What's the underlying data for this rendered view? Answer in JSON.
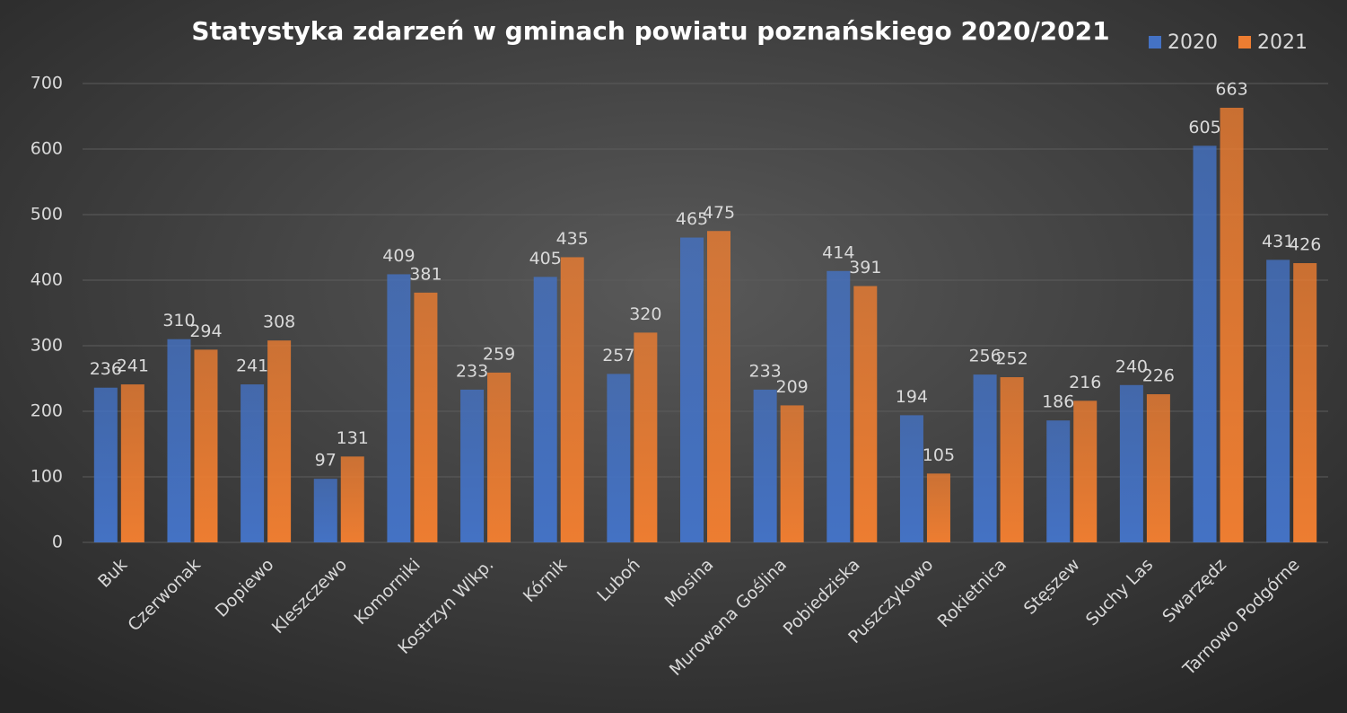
{
  "chart_data": {
    "type": "bar",
    "title": "Statystyka zdarzeń w gminach powiatu poznańskiego 2020/2021",
    "categories": [
      "Buk",
      "Czerwonak",
      "Dopiewo",
      "Kleszczewo",
      "Komorniki",
      "Kostrzyn Wlkp.",
      "Kórnik",
      "Luboń",
      "Mosina",
      "Murowana Goślina",
      "Pobiedziska",
      "Puszczykowo",
      "Rokietnica",
      "Stęszew",
      "Suchy Las",
      "Swarzędz",
      "Tarnowo Podgórne"
    ],
    "series": [
      {
        "name": "2020",
        "color": "#4472c4",
        "values": [
          236,
          310,
          241,
          97,
          409,
          233,
          405,
          257,
          465,
          233,
          414,
          194,
          256,
          186,
          240,
          605,
          431
        ]
      },
      {
        "name": "2021",
        "color": "#ed7d31",
        "values": [
          241,
          294,
          308,
          131,
          381,
          259,
          435,
          320,
          475,
          209,
          391,
          105,
          252,
          216,
          226,
          663,
          426
        ]
      }
    ],
    "ylim": [
      0,
      700
    ],
    "yticks": [
      0,
      100,
      200,
      300,
      400,
      500,
      600,
      700
    ],
    "grid": true,
    "legend": "top-right"
  }
}
